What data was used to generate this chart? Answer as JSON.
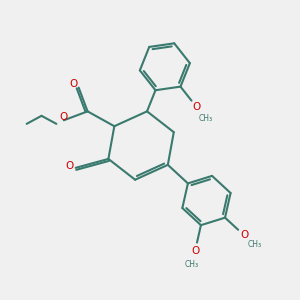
{
  "background_color": "#f0f0f0",
  "bond_color": "#3a7a6e",
  "oxygen_color": "#cc0000",
  "line_width": 1.5,
  "fig_width": 3.0,
  "fig_height": 3.0,
  "dpi": 100,
  "xlim": [
    0,
    10
  ],
  "ylim": [
    0,
    10
  ]
}
